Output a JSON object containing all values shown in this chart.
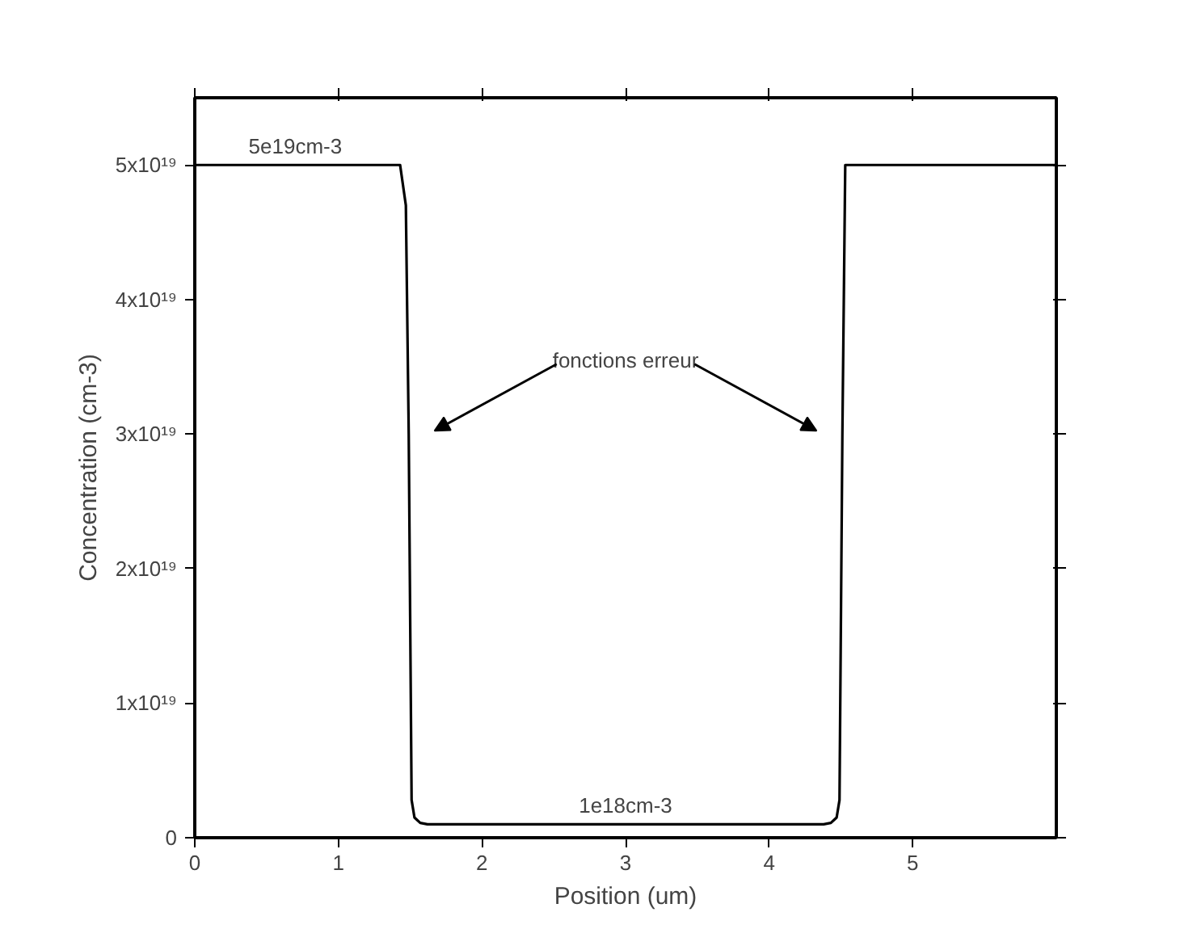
{
  "chart_data": {
    "type": "line",
    "xlabel": "Position (um)",
    "ylabel": "Concentration (cm-3)",
    "x": [
      0,
      1.43,
      1.47,
      1.49,
      1.51,
      1.53,
      1.57,
      1.62,
      4.38,
      4.43,
      4.47,
      4.49,
      4.51,
      4.53,
      6
    ],
    "series": [
      {
        "color": "#000000",
        "values": [
          5e+19,
          5e+19,
          4.7e+19,
          3e+19,
          2.8e+18,
          1.5e+18,
          1.1e+18,
          1e+18,
          1e+18,
          1.1e+18,
          1.5e+18,
          2.8e+18,
          3e+19,
          5e+19,
          5e+19
        ]
      }
    ],
    "xlim": [
      0,
      6
    ],
    "ylim": [
      0,
      5.5e+19
    ],
    "xticks": [
      0,
      1,
      2,
      3,
      4,
      5
    ],
    "yticks": [
      0,
      {
        "value": 1e+19,
        "label": "1x10¹⁹"
      },
      {
        "value": 2e+19,
        "label": "2x10¹⁹"
      },
      {
        "value": 3e+19,
        "label": "3x10¹⁹"
      },
      {
        "value": 4e+19,
        "label": "4x10¹⁹"
      },
      {
        "value": 5e+19,
        "label": "5x10¹⁹"
      }
    ],
    "annotations": [
      {
        "text": "5e19cm-3",
        "x": 0.7,
        "y": 5e+19
      },
      {
        "text": "1e18cm-3",
        "x": 3,
        "y": 1e+18
      },
      "fonctions erreur"
    ],
    "line_style": "solid"
  }
}
